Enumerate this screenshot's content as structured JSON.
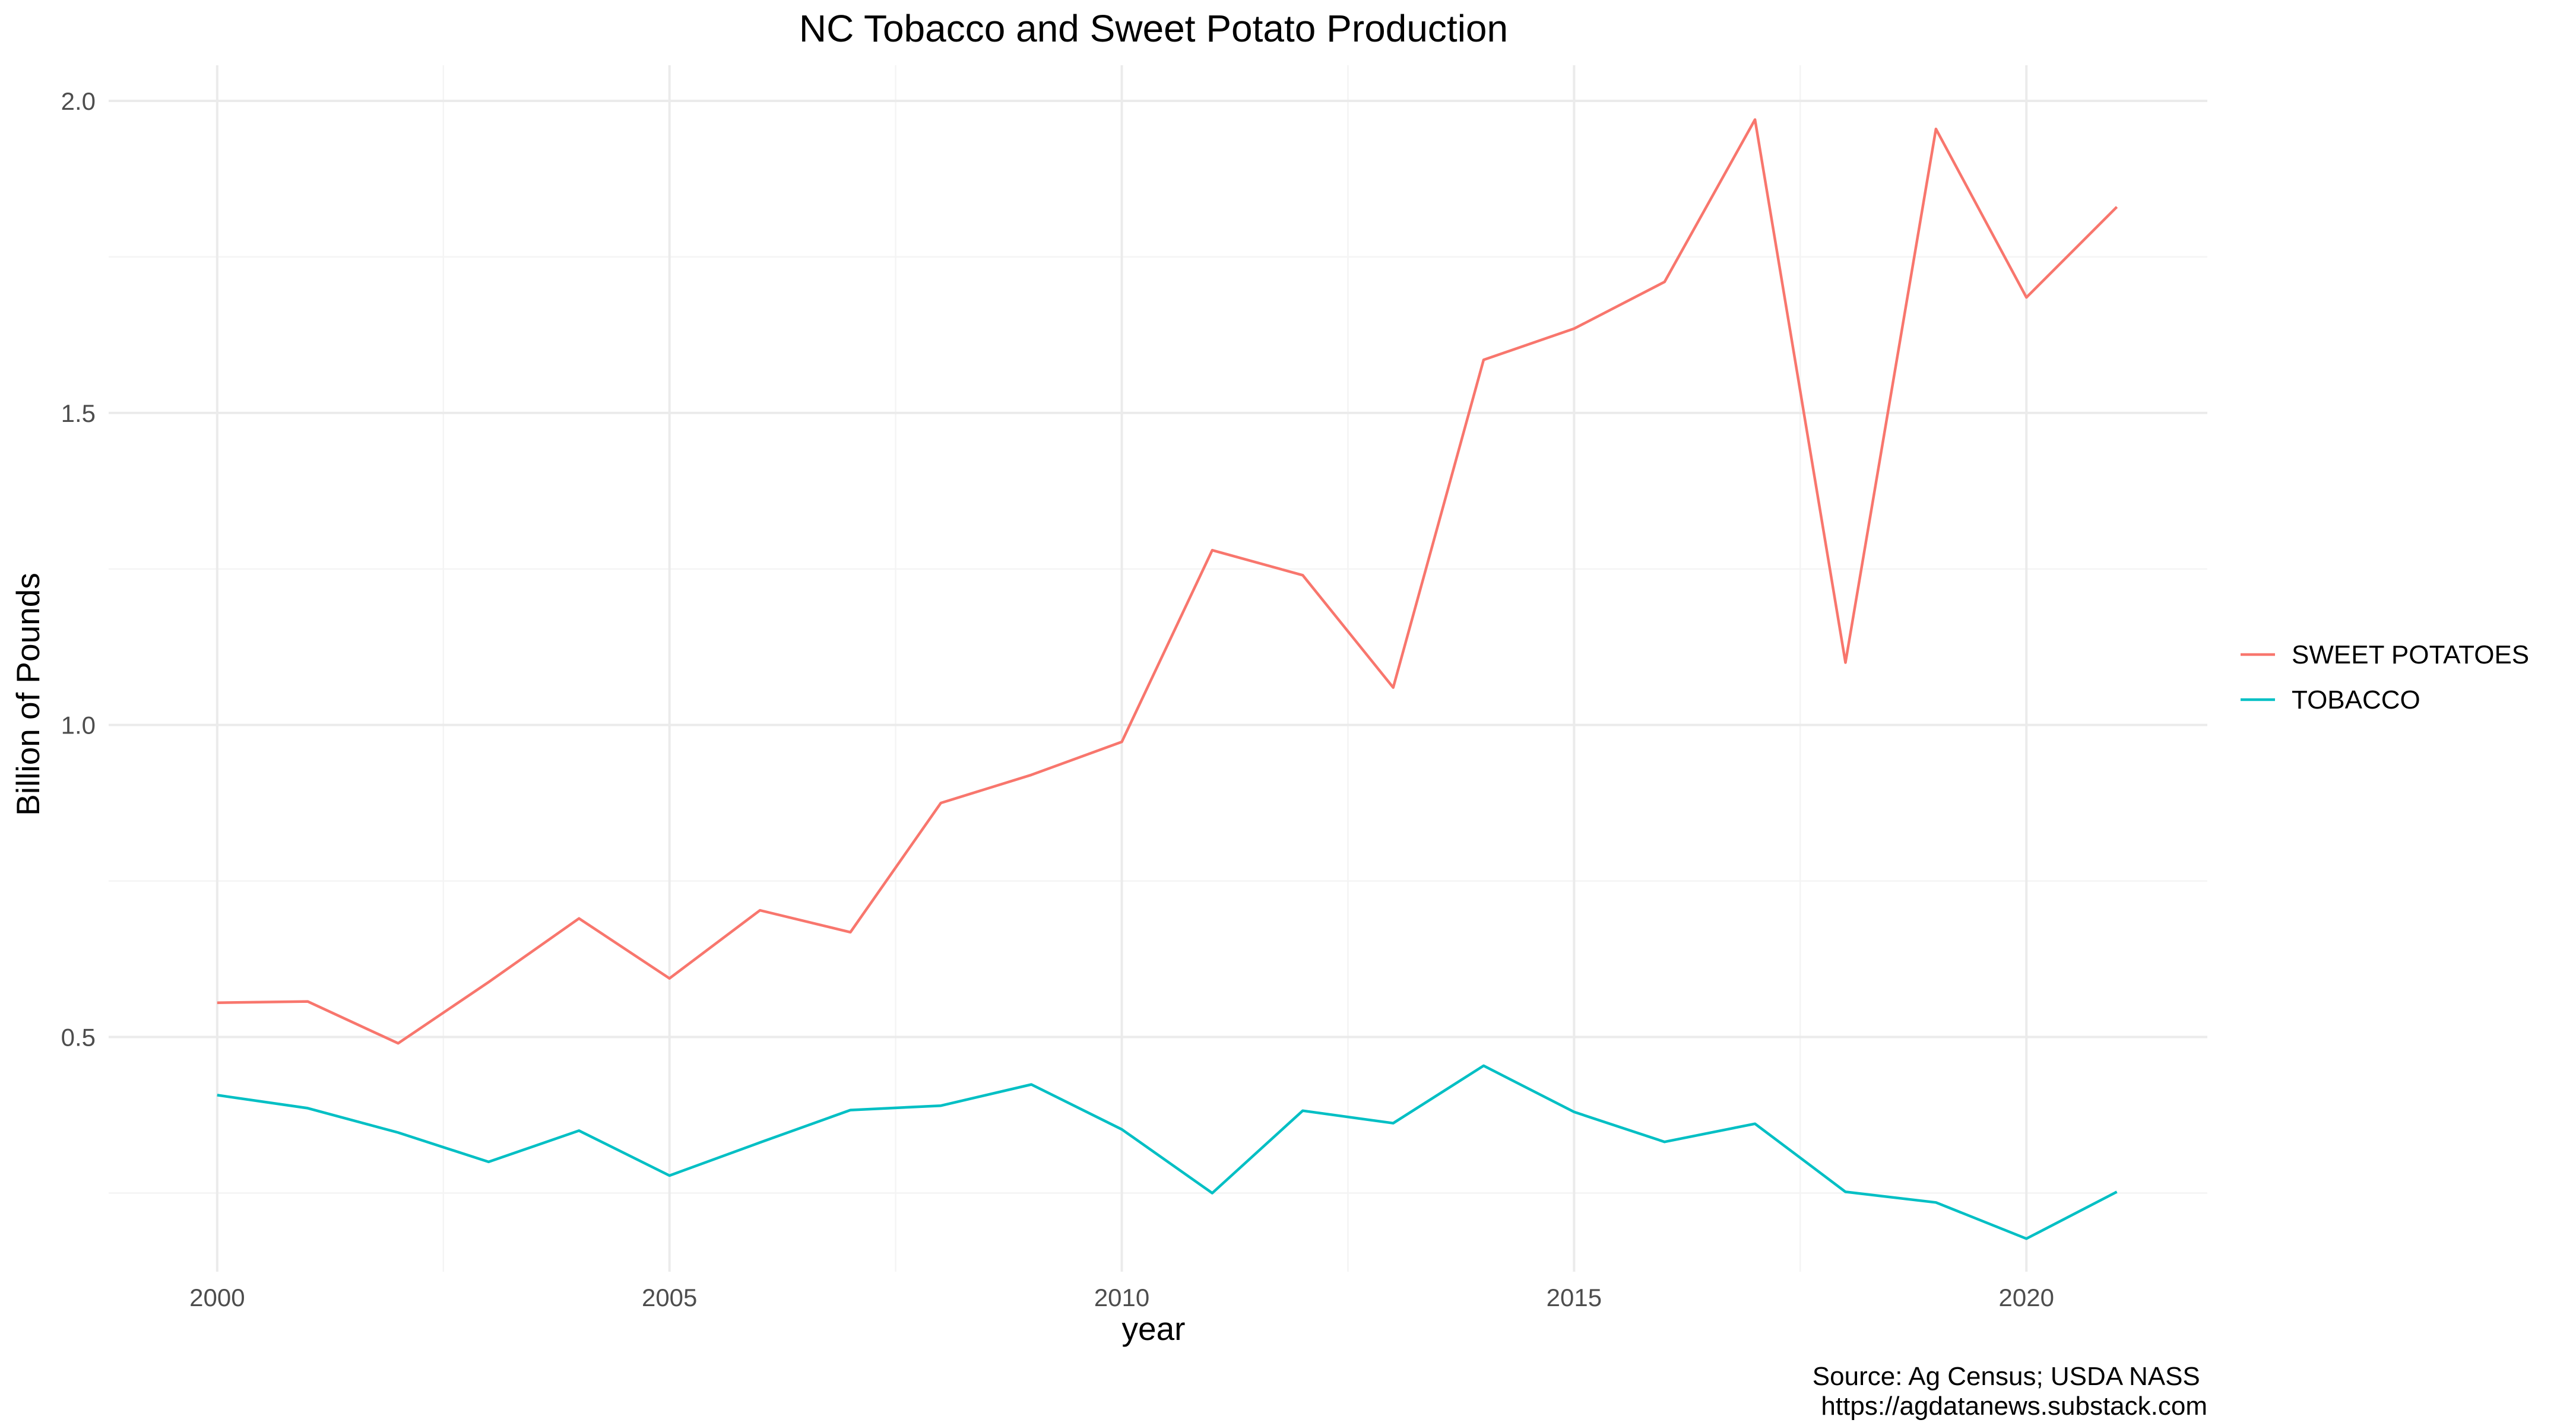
{
  "chart_data": {
    "type": "line",
    "title": "NC Tobacco and Sweet Potato Production",
    "xlabel": "year",
    "ylabel": "Billion of Pounds",
    "xlim": [
      1998.8,
      2022.0
    ],
    "ylim": [
      0.124,
      2.057
    ],
    "x_ticks": [
      2000,
      2005,
      2010,
      2015,
      2020
    ],
    "y_ticks": [
      0.5,
      1.0,
      1.5,
      2.0
    ],
    "x_tick_labels": [
      "2000",
      "2005",
      "2010",
      "2015",
      "2020"
    ],
    "y_tick_labels": [
      "0.5",
      "1.0",
      "1.5",
      "2.0"
    ],
    "grid": true,
    "legend_position": "right",
    "x": [
      2000,
      2001,
      2002,
      2003,
      2004,
      2005,
      2006,
      2007,
      2008,
      2009,
      2010,
      2011,
      2012,
      2013,
      2014,
      2015,
      2016,
      2017,
      2018,
      2019,
      2020,
      2021
    ],
    "series": [
      {
        "name": "SWEET POTATOES",
        "color": "#F8766D",
        "values": [
          0.555,
          0.557,
          0.49,
          0.588,
          0.69,
          0.594,
          0.703,
          0.668,
          0.875,
          0.92,
          0.973,
          1.28,
          1.24,
          1.06,
          1.585,
          1.635,
          1.71,
          1.97,
          1.1,
          1.955,
          1.685,
          1.83
        ]
      },
      {
        "name": "TOBACCO",
        "color": "#00BFC4",
        "values": [
          0.407,
          0.386,
          0.347,
          0.3,
          0.35,
          0.278,
          0.331,
          0.383,
          0.39,
          0.424,
          0.352,
          0.25,
          0.382,
          0.362,
          0.454,
          0.38,
          0.332,
          0.361,
          0.252,
          0.235,
          0.177,
          0.252
        ]
      }
    ],
    "caption": [
      "Source: Ag Census; USDA NASS ",
      "https://agdatanews.substack.com"
    ]
  }
}
